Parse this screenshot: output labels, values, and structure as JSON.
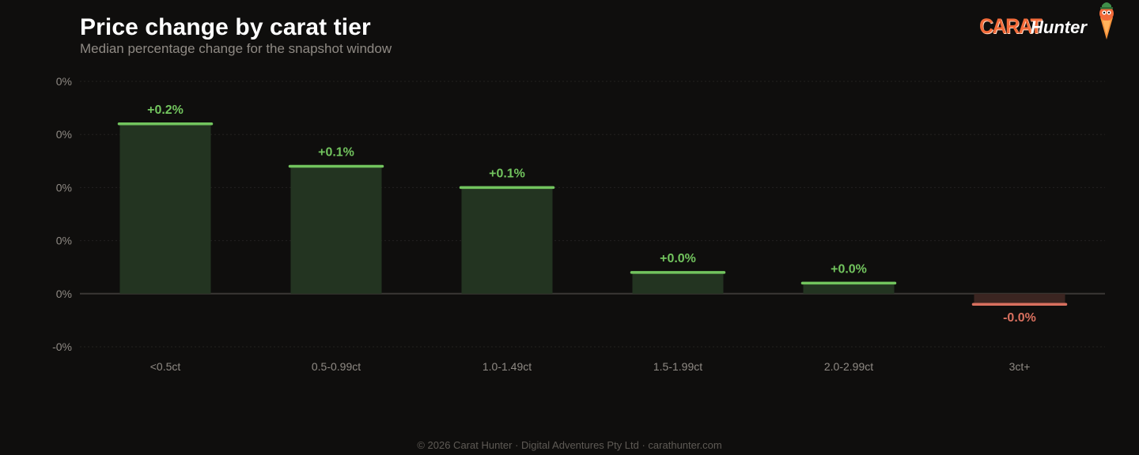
{
  "header": {
    "title": "Price change by carat tier",
    "subtitle": "Median percentage change for the snapshot window"
  },
  "logo": {
    "word1": "CARAT",
    "word2": "Hunter",
    "icon": "hunter-mascot-icon"
  },
  "colors": {
    "positive": "#72c45e",
    "positive_fill": "#233421",
    "negative": "#d9705f",
    "negative_fill": "#3b2521",
    "axis_text": "#8f8a84",
    "grid": "#232120",
    "zero_line": "#3a3735"
  },
  "chart_data": {
    "type": "bar",
    "title": "Price change by carat tier",
    "subtitle": "Median percentage change for the snapshot window",
    "categories": [
      "<0.5ct",
      "0.5-0.99ct",
      "1.0-1.49ct",
      "1.5-1.99ct",
      "2.0-2.99ct",
      "3ct+"
    ],
    "values": [
      0.16,
      0.12,
      0.1,
      0.02,
      0.01,
      -0.01
    ],
    "data_labels": [
      "+0.2%",
      "+0.1%",
      "+0.1%",
      "+0.0%",
      "+0.0%",
      "-0.0%"
    ],
    "y_tick_values": [
      0.2,
      0.15,
      0.1,
      0.05,
      0,
      -0.05
    ],
    "y_tick_labels": [
      "0%",
      "0%",
      "0%",
      "0%",
      "0%",
      "-0%"
    ],
    "ylim": [
      -0.05,
      0.2
    ],
    "grid": true,
    "legend": "none"
  },
  "footer": {
    "text": "© 2026 Carat Hunter · Digital Adventures Pty Ltd · carathunter.com"
  }
}
